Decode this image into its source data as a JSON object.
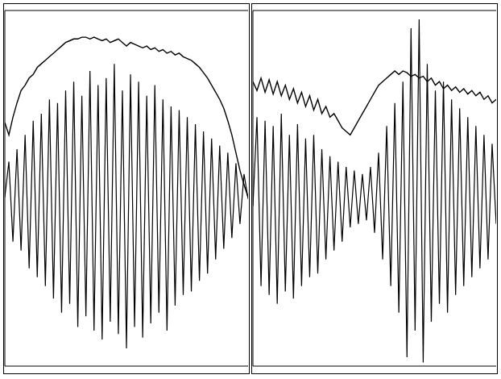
{
  "chart_data": [
    {
      "type": "line",
      "tick_labels": false,
      "xlim": [
        0,
        60
      ],
      "xticks": [
        0,
        5,
        10,
        15,
        20,
        25,
        30,
        35,
        40,
        45,
        50,
        55,
        60
      ],
      "ylim": [
        -100,
        100
      ],
      "x": [
        0,
        1,
        2,
        3,
        4,
        5,
        6,
        7,
        8,
        9,
        10,
        11,
        12,
        13,
        14,
        15,
        16,
        17,
        18,
        19,
        20,
        21,
        22,
        23,
        24,
        25,
        26,
        27,
        28,
        29,
        30,
        31,
        32,
        33,
        34,
        35,
        36,
        37,
        38,
        39,
        40,
        41,
        42,
        43,
        44,
        45,
        46,
        47,
        48,
        49,
        50,
        51,
        52,
        53,
        54,
        55,
        56,
        57,
        58,
        59,
        60
      ],
      "series": [
        {
          "color": "#000000",
          "marker": "none",
          "values": [
            -5,
            15,
            -30,
            22,
            -35,
            30,
            -45,
            38,
            -50,
            42,
            -55,
            50,
            -62,
            48,
            -70,
            55,
            -65,
            60,
            -78,
            52,
            -72,
            66,
            -80,
            58,
            -85,
            62,
            -75,
            70,
            -82,
            55,
            -90,
            64,
            -78,
            60,
            -84,
            52,
            -76,
            58,
            -70,
            50,
            -80,
            46,
            -66,
            44,
            -60,
            40,
            -58,
            36,
            -52,
            32,
            -48,
            28,
            -40,
            24,
            -34,
            20,
            -28,
            14,
            -20,
            8,
            -6
          ]
        },
        {
          "color": "#000000",
          "marker": "none",
          "values": [
            37,
            30,
            40,
            48,
            55,
            58,
            62,
            64,
            68,
            70,
            72,
            74,
            76,
            78,
            80,
            82,
            83,
            84,
            84,
            85,
            85,
            84,
            85,
            84,
            83,
            84,
            82,
            83,
            84,
            82,
            80,
            82,
            81,
            80,
            79,
            80,
            78,
            79,
            77,
            78,
            76,
            77,
            75,
            76,
            74,
            73,
            72,
            70,
            68,
            65,
            62,
            58,
            54,
            50,
            45,
            38,
            30,
            20,
            10,
            2,
            -5
          ]
        }
      ]
    },
    {
      "type": "line",
      "tick_labels": false,
      "xlim": [
        0,
        60
      ],
      "xticks": [
        0,
        5,
        10,
        15,
        20,
        25,
        30,
        35,
        40,
        45,
        50,
        55,
        60
      ],
      "ylim": [
        -100,
        100
      ],
      "x": [
        0,
        1,
        2,
        3,
        4,
        5,
        6,
        7,
        8,
        9,
        10,
        11,
        12,
        13,
        14,
        15,
        16,
        17,
        18,
        19,
        20,
        21,
        22,
        23,
        24,
        25,
        26,
        27,
        28,
        29,
        30,
        31,
        32,
        33,
        34,
        35,
        36,
        37,
        38,
        39,
        40,
        41,
        42,
        43,
        44,
        45,
        46,
        47,
        48,
        49,
        50,
        51,
        52,
        53,
        54,
        55,
        56,
        57,
        58,
        59,
        60
      ],
      "series": [
        {
          "color": "#000000",
          "marker": "none",
          "values": [
            -10,
            40,
            -55,
            38,
            -60,
            35,
            -65,
            42,
            -58,
            30,
            -62,
            36,
            -55,
            28,
            -50,
            30,
            -48,
            22,
            -40,
            18,
            -35,
            15,
            -30,
            12,
            -22,
            10,
            -20,
            8,
            -18,
            12,
            -25,
            20,
            -40,
            35,
            -55,
            48,
            -70,
            60,
            -95,
            90,
            -80,
            95,
            -98,
            70,
            -75,
            55,
            -65,
            60,
            -70,
            50,
            -60,
            45,
            -55,
            40,
            -50,
            35,
            -45,
            30,
            -40,
            25,
            -20
          ]
        },
        {
          "color": "#000000",
          "marker": "none",
          "values": [
            60,
            55,
            62,
            54,
            61,
            53,
            60,
            52,
            58,
            50,
            56,
            48,
            54,
            46,
            52,
            44,
            50,
            42,
            46,
            40,
            42,
            38,
            34,
            32,
            30,
            34,
            38,
            42,
            46,
            50,
            54,
            58,
            60,
            62,
            64,
            66,
            64,
            66,
            65,
            63,
            64,
            62,
            63,
            60,
            62,
            58,
            60,
            56,
            58,
            55,
            57,
            54,
            56,
            53,
            55,
            52,
            54,
            50,
            52,
            48,
            50
          ]
        }
      ]
    }
  ]
}
